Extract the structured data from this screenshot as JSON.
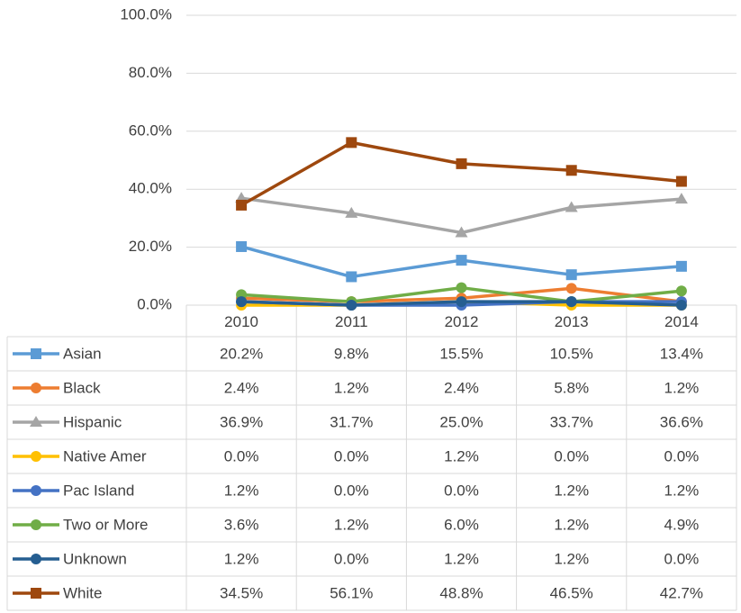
{
  "chart_data": {
    "type": "line",
    "categories": [
      "2010",
      "2011",
      "2012",
      "2013",
      "2014"
    ],
    "ylim": [
      0,
      100
    ],
    "yticks": [
      {
        "value": 0,
        "label": "0.0%"
      },
      {
        "value": 20,
        "label": "20.0%"
      },
      {
        "value": 40,
        "label": "40.0%"
      },
      {
        "value": 60,
        "label": "60.0%"
      },
      {
        "value": 80,
        "label": "80.0%"
      },
      {
        "value": 100,
        "label": "100.0%"
      }
    ],
    "grid": true,
    "series": [
      {
        "name": "Asian",
        "color": "#5b9bd5",
        "marker": "square",
        "values": [
          20.2,
          9.8,
          15.5,
          10.5,
          13.4
        ],
        "value_labels": [
          "20.2%",
          "9.8%",
          "15.5%",
          "10.5%",
          "13.4%"
        ]
      },
      {
        "name": "Black",
        "color": "#ed7d31",
        "marker": "circle",
        "values": [
          2.4,
          1.2,
          2.4,
          5.8,
          1.2
        ],
        "value_labels": [
          "2.4%",
          "1.2%",
          "2.4%",
          "5.8%",
          "1.2%"
        ]
      },
      {
        "name": "Hispanic",
        "color": "#a5a5a5",
        "marker": "triangle",
        "values": [
          36.9,
          31.7,
          25.0,
          33.7,
          36.6
        ],
        "value_labels": [
          "36.9%",
          "31.7%",
          "25.0%",
          "33.7%",
          "36.6%"
        ]
      },
      {
        "name": "Native Amer",
        "color": "#ffc000",
        "marker": "circle",
        "values": [
          0.0,
          0.0,
          1.2,
          0.0,
          0.0
        ],
        "value_labels": [
          "0.0%",
          "0.0%",
          "1.2%",
          "0.0%",
          "0.0%"
        ]
      },
      {
        "name": "Pac Island",
        "color": "#4472c4",
        "marker": "circle",
        "values": [
          1.2,
          0.0,
          0.0,
          1.2,
          1.2
        ],
        "value_labels": [
          "1.2%",
          "0.0%",
          "0.0%",
          "1.2%",
          "1.2%"
        ]
      },
      {
        "name": "Two or More",
        "color": "#70ad47",
        "marker": "circle",
        "values": [
          3.6,
          1.2,
          6.0,
          1.2,
          4.9
        ],
        "value_labels": [
          "3.6%",
          "1.2%",
          "6.0%",
          "1.2%",
          "4.9%"
        ]
      },
      {
        "name": "Unknown",
        "color": "#255e91",
        "marker": "circle",
        "values": [
          1.2,
          0.0,
          1.2,
          1.2,
          0.0
        ],
        "value_labels": [
          "1.2%",
          "0.0%",
          "1.2%",
          "1.2%",
          "0.0%"
        ]
      },
      {
        "name": "White",
        "color": "#9e480e",
        "marker": "square",
        "values": [
          34.5,
          56.1,
          48.8,
          46.5,
          42.7
        ],
        "value_labels": [
          "34.5%",
          "56.1%",
          "48.8%",
          "46.5%",
          "42.7%"
        ]
      }
    ]
  }
}
